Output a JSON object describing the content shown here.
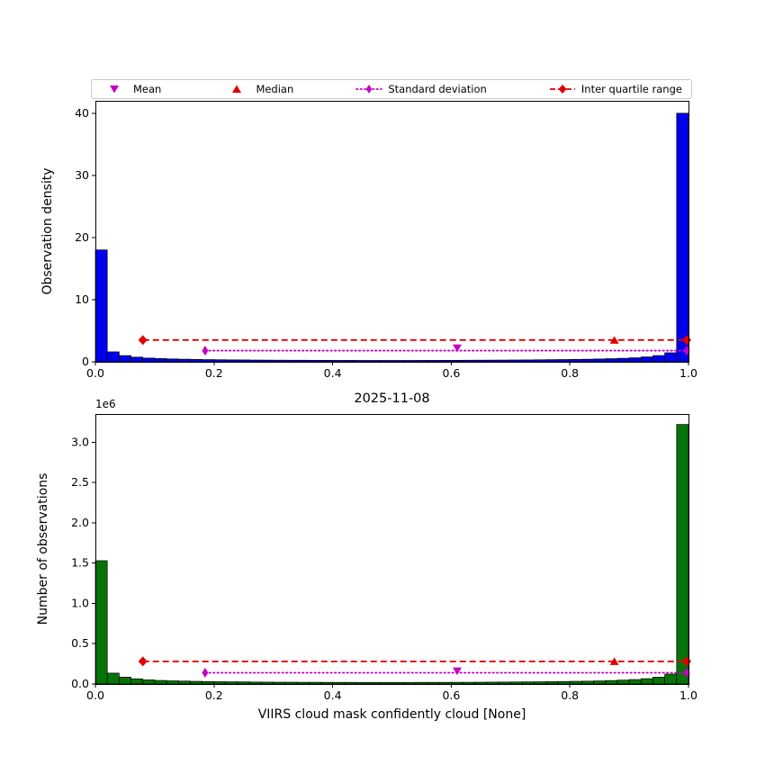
{
  "colors": {
    "red": "#e00000",
    "magenta": "#c400c4",
    "blue": "#0000ee",
    "green": "#067306",
    "axis": "#000000",
    "legend_border": "#c9c9c9"
  },
  "legend": {
    "items": [
      {
        "label": "Mean",
        "style": "triangle-down",
        "color": "#c400c4"
      },
      {
        "label": "Median",
        "style": "triangle-up",
        "color": "#e00000"
      },
      {
        "label": "Standard deviation",
        "style": "dotted-line-diamond",
        "color": "#c400c4"
      },
      {
        "label": "Inter quartile range",
        "style": "dashed-line-diamond",
        "color": "#e00000"
      }
    ]
  },
  "chart_data": [
    {
      "name": "observation-density-histogram",
      "type": "bar",
      "title": "",
      "xlabel": "",
      "ylabel": "Observation density",
      "xlim": [
        0,
        1
      ],
      "ylim": [
        0,
        42
      ],
      "xticks": [
        0,
        0.2,
        0.4,
        0.6,
        0.8,
        1
      ],
      "xtick_labels": [
        "0.0",
        "0.2",
        "0.4",
        "0.6",
        "0.8",
        "1.0"
      ],
      "yticks": [
        0,
        10,
        20,
        30,
        40
      ],
      "ytick_labels": [
        "0",
        "10",
        "20",
        "30",
        "40"
      ],
      "bin_width": 0.02,
      "bar_color": "#0000ee",
      "values": [
        18.0,
        1.6,
        1.0,
        0.75,
        0.6,
        0.52,
        0.46,
        0.42,
        0.38,
        0.35,
        0.33,
        0.31,
        0.3,
        0.28,
        0.27,
        0.26,
        0.25,
        0.25,
        0.24,
        0.24,
        0.23,
        0.23,
        0.22,
        0.22,
        0.22,
        0.22,
        0.22,
        0.23,
        0.23,
        0.24,
        0.24,
        0.25,
        0.26,
        0.27,
        0.28,
        0.29,
        0.3,
        0.32,
        0.34,
        0.36,
        0.38,
        0.41,
        0.45,
        0.5,
        0.56,
        0.64,
        0.78,
        1.0,
        1.45,
        40.0
      ],
      "stats": {
        "mean_x": 0.61,
        "mean_y": 2.2,
        "median_x": 0.875,
        "median_y": 3.5,
        "std": {
          "x_start": 0.185,
          "x_end": 0.997,
          "y": 1.8
        },
        "iqr": {
          "x_start": 0.08,
          "x_end": 0.997,
          "y": 3.5
        }
      }
    },
    {
      "name": "observation-count-histogram",
      "type": "bar",
      "title": "2025-11-08",
      "xlabel": "VIIRS cloud mask confidently cloud [None]",
      "ylabel": "Number of observations",
      "offset_label": "1e6",
      "value_unit": "1e6",
      "xlim": [
        0,
        1
      ],
      "ylim": [
        0,
        3.35
      ],
      "xticks": [
        0,
        0.2,
        0.4,
        0.6,
        0.8,
        1
      ],
      "xtick_labels": [
        "0.0",
        "0.2",
        "0.4",
        "0.6",
        "0.8",
        "1.0"
      ],
      "yticks": [
        0,
        0.5,
        1.0,
        1.5,
        2.0,
        2.5,
        3.0
      ],
      "ytick_labels": [
        "0.0",
        "0.5",
        "1.0",
        "1.5",
        "2.0",
        "2.5",
        "3.0"
      ],
      "bin_width": 0.02,
      "bar_color": "#067306",
      "values": [
        1.53,
        0.135,
        0.085,
        0.064,
        0.051,
        0.044,
        0.039,
        0.036,
        0.033,
        0.03,
        0.028,
        0.027,
        0.026,
        0.024,
        0.023,
        0.022,
        0.022,
        0.021,
        0.021,
        0.02,
        0.02,
        0.02,
        0.019,
        0.019,
        0.019,
        0.019,
        0.019,
        0.02,
        0.02,
        0.02,
        0.021,
        0.021,
        0.022,
        0.023,
        0.024,
        0.025,
        0.026,
        0.027,
        0.029,
        0.031,
        0.033,
        0.035,
        0.038,
        0.043,
        0.048,
        0.055,
        0.066,
        0.085,
        0.123,
        3.22
      ],
      "stats": {
        "mean_x": 0.61,
        "mean_y": 0.16,
        "median_x": 0.875,
        "median_y": 0.28,
        "std": {
          "x_start": 0.185,
          "x_end": 0.997,
          "y": 0.14
        },
        "iqr": {
          "x_start": 0.08,
          "x_end": 0.997,
          "y": 0.28
        }
      }
    }
  ]
}
